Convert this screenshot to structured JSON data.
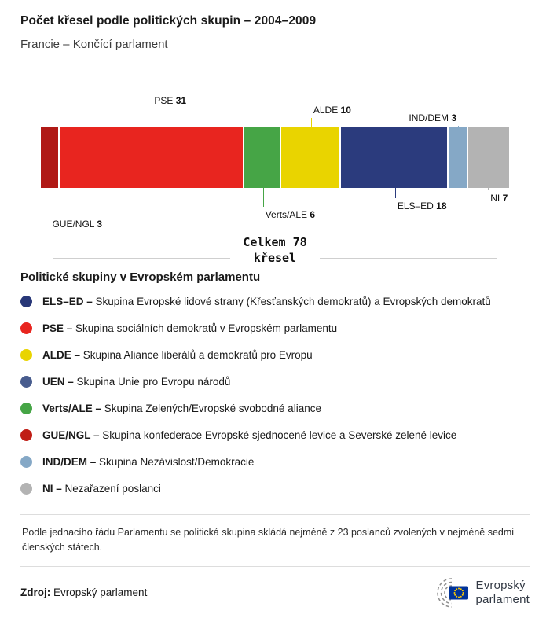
{
  "header": {
    "title": "Počet křesel podle politických skupin – 2004–2009",
    "subtitle": "Francie – Končící parlament"
  },
  "chart_data": {
    "type": "bar",
    "stacked": true,
    "orientation": "horizontal",
    "title": "Počet křesel podle politických skupin – 2004–2009",
    "subtitle": "Francie – Končící parlament",
    "total": 78,
    "total_label_line1": "Celkem 78",
    "total_label_line2": "křesel",
    "categories": [
      "GUE/NGL",
      "PSE",
      "Verts/ALE",
      "ALDE",
      "ELS–ED",
      "IND/DEM",
      "NI"
    ],
    "values": [
      3,
      31,
      6,
      10,
      18,
      3,
      7
    ],
    "segments": [
      {
        "label": "GUE/NGL",
        "value": 3,
        "color": "#b01916",
        "callout": {
          "side": "below",
          "level": 3,
          "align": "left"
        }
      },
      {
        "label": "PSE",
        "value": 31,
        "color": "#e8251f",
        "callout": {
          "side": "above",
          "level": 3,
          "align": "left"
        }
      },
      {
        "label": "Verts/ALE",
        "value": 6,
        "color": "#46a546",
        "callout": {
          "side": "below",
          "level": 2,
          "align": "left"
        }
      },
      {
        "label": "ALDE",
        "value": 10,
        "color": "#e9d400",
        "callout": {
          "side": "above",
          "level": 2,
          "align": "left"
        }
      },
      {
        "label": "ELS–ED",
        "value": 18,
        "color": "#2b3b7d",
        "callout": {
          "side": "below",
          "level": 1,
          "align": "left"
        }
      },
      {
        "label": "IND/DEM",
        "value": 3,
        "color": "#85a8c6",
        "callout": {
          "side": "above",
          "level": 1,
          "align": "right"
        }
      },
      {
        "label": "NI",
        "value": 7,
        "color": "#b3b3b3",
        "callout": {
          "side": "below",
          "level": 0,
          "align": "left"
        }
      }
    ]
  },
  "legend": {
    "heading": "Politické skupiny v Evropském parlamentu",
    "items": [
      {
        "label": "ELS–ED –",
        "desc": "Skupina Evropské lidové strany (Křesťanských demokratů) a Evropských demokratů",
        "color": "#283778"
      },
      {
        "label": "PSE –",
        "desc": "Skupina sociálních demokratů v Evropském parlamentu",
        "color": "#e8251f"
      },
      {
        "label": "ALDE –",
        "desc": "Skupina Aliance liberálů a demokratů pro Evropu",
        "color": "#e9d400"
      },
      {
        "label": "UEN –",
        "desc": "Skupina Unie pro Evropu národů",
        "color": "#485c8e"
      },
      {
        "label": "Verts/ALE –",
        "desc": "Skupina Zelených/Evropské svobodné aliance",
        "color": "#46a546"
      },
      {
        "label": "GUE/NGL –",
        "desc": "Skupina konfederace Evropské sjednocené levice a Severské zelené levice",
        "color": "#c01d15"
      },
      {
        "label": "IND/DEM –",
        "desc": "Skupina Nezávislost/Demokracie",
        "color": "#85a8c6"
      },
      {
        "label": "NI –",
        "desc": "Nezařazení poslanci",
        "color": "#b3b3b3"
      }
    ]
  },
  "note": "Podle jednacího řádu Parlamentu se politická skupina skládá nejméně z 23 poslanců zvolených v nejméně sedmi členských státech.",
  "footer": {
    "source_label": "Zdroj:",
    "source_value": "Evropský parlament",
    "logo_text_line1": "Evropský",
    "logo_text_line2": "parlament"
  }
}
